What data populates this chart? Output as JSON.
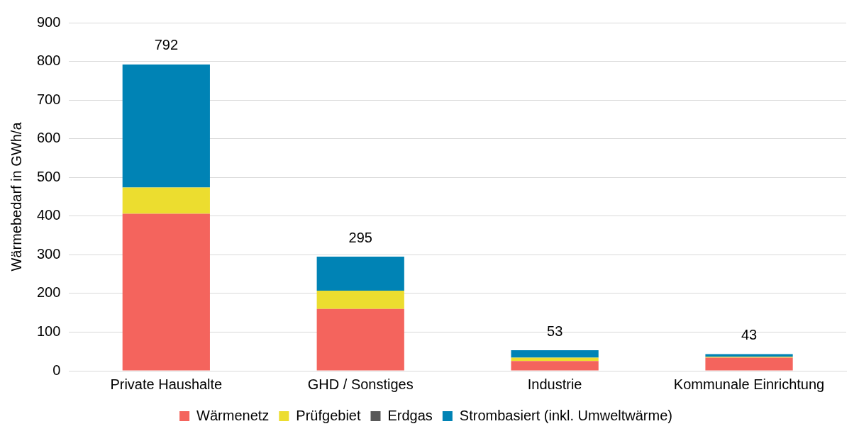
{
  "chart_data": {
    "type": "bar",
    "stacked": true,
    "ylabel": "Wärmebedarf in GWh/a",
    "categories": [
      "Private Haushalte",
      "GHD / Sonstiges",
      "Industrie",
      "Kommunale Einrichtung"
    ],
    "series": [
      {
        "name": "Wärmenetz",
        "color": "#f4645d",
        "values": [
          406,
          160,
          25,
          34
        ]
      },
      {
        "name": "Prüfgebiet",
        "color": "#ecdd2f",
        "values": [
          68,
          47,
          9,
          2
        ]
      },
      {
        "name": "Erdgas",
        "color": "#595959",
        "values": [
          0,
          0,
          0,
          0
        ]
      },
      {
        "name": "Strombasiert (inkl. Umweltwärme)",
        "color": "#0083b5",
        "values": [
          318,
          88,
          19,
          7
        ]
      }
    ],
    "totals": [
      "792",
      "295",
      "53",
      "43"
    ],
    "ylim": [
      0,
      900
    ],
    "yticks": [
      0,
      100,
      200,
      300,
      400,
      500,
      600,
      700,
      800,
      900
    ],
    "grid": "y",
    "legend": "bottom"
  }
}
